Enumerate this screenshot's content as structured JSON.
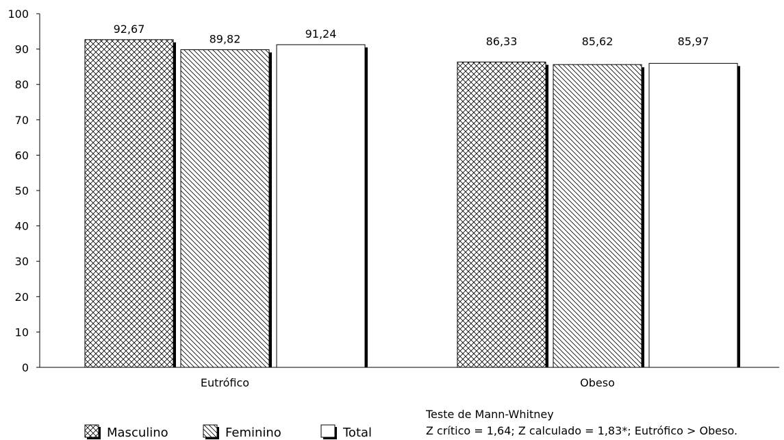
{
  "chart_data": {
    "type": "bar",
    "categories": [
      "Eutrófico",
      "Obeso"
    ],
    "series": [
      {
        "name": "Masculino",
        "values": [
          92.67,
          86.33
        ],
        "labels": [
          "92,67",
          "86,33"
        ],
        "pattern": "crosshatch"
      },
      {
        "name": "Feminino",
        "values": [
          89.82,
          85.62
        ],
        "labels": [
          "89,82",
          "85,62"
        ],
        "pattern": "diagonal"
      },
      {
        "name": "Total",
        "values": [
          91.24,
          85.97
        ],
        "labels": [
          "91,24",
          "85,97"
        ],
        "pattern": "solid-white"
      }
    ],
    "ylim": [
      0,
      100
    ],
    "yticks": [
      "0",
      "10",
      "20",
      "30",
      "40",
      "50",
      "60",
      "70",
      "80",
      "90",
      "100"
    ],
    "legend_position": "bottom-left",
    "grid": false,
    "note": {
      "line1": "Teste de Mann-Whitney",
      "line2": "Z crítico = 1,64; Z calculado = 1,83*; Eutrófico > Obeso."
    }
  }
}
